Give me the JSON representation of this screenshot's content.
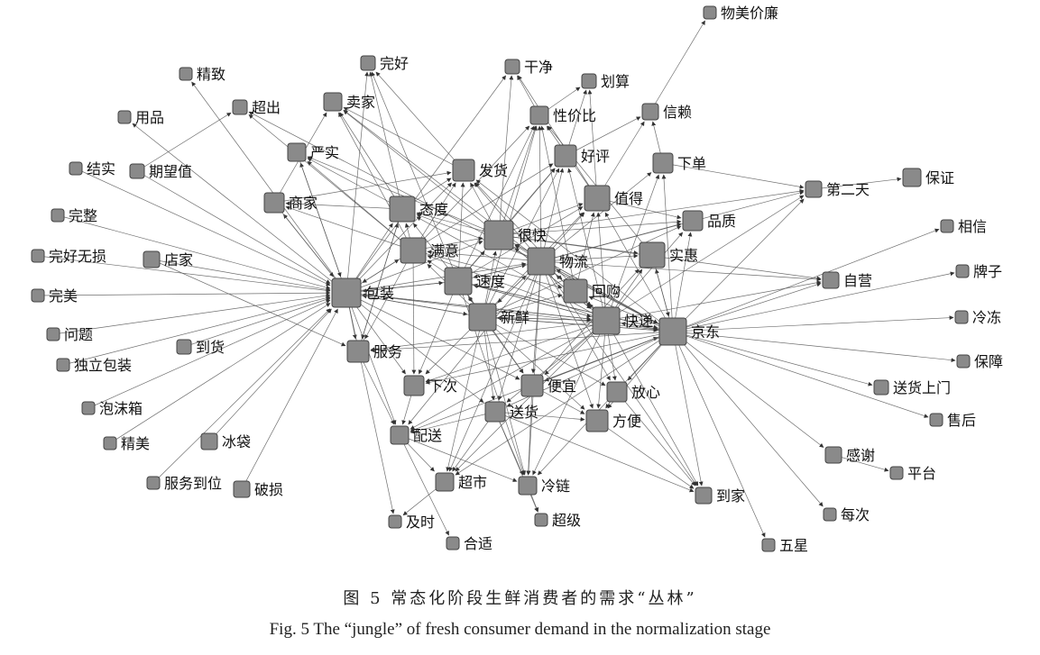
{
  "figure": {
    "caption_zh": "图 5   常态化阶段生鲜消费者的需求“丛林”",
    "caption_en": "Fig. 5    The “jungle” of fresh consumer demand in the normalization stage"
  },
  "colors": {
    "node_fill": "#8a8a8a",
    "node_stroke": "#444444",
    "edge": "#555555"
  },
  "nodes": [
    {
      "id": "wumeijialian",
      "label": "物美价廉",
      "size": 14
    },
    {
      "id": "jingzhi",
      "label": "精致",
      "size": 14
    },
    {
      "id": "wanhao",
      "label": "完好",
      "size": 16
    },
    {
      "id": "ganjing",
      "label": "干净",
      "size": 16
    },
    {
      "id": "huasuan",
      "label": "划算",
      "size": 16
    },
    {
      "id": "yongpin",
      "label": "用品",
      "size": 14
    },
    {
      "id": "chaochu",
      "label": "超出",
      "size": 16
    },
    {
      "id": "maijia",
      "label": "卖家",
      "size": 20
    },
    {
      "id": "xingjiabi",
      "label": "性价比",
      "size": 20
    },
    {
      "id": "xinlai",
      "label": "信赖",
      "size": 18
    },
    {
      "id": "yanshi",
      "label": "严实",
      "size": 20
    },
    {
      "id": "haoping",
      "label": "好评",
      "size": 24
    },
    {
      "id": "xiadan",
      "label": "下单",
      "size": 22
    },
    {
      "id": "jieshi",
      "label": "结实",
      "size": 14
    },
    {
      "id": "qiwangzhi",
      "label": "期望值",
      "size": 16
    },
    {
      "id": "fahuo",
      "label": "发货",
      "size": 24
    },
    {
      "id": "zhide",
      "label": "值得",
      "size": 28
    },
    {
      "id": "baozheng",
      "label": "保证",
      "size": 20
    },
    {
      "id": "diertian",
      "label": "第二天",
      "size": 18
    },
    {
      "id": "shangjia",
      "label": "商家",
      "size": 22
    },
    {
      "id": "taidu",
      "label": "态度",
      "size": 28
    },
    {
      "id": "wanzheng",
      "label": "完整",
      "size": 14
    },
    {
      "id": "henkuai",
      "label": "很快",
      "size": 32
    },
    {
      "id": "pinzhi",
      "label": "品质",
      "size": 22
    },
    {
      "id": "xiangxin",
      "label": "相信",
      "size": 14
    },
    {
      "id": "manyi",
      "label": "满意",
      "size": 28
    },
    {
      "id": "wuliu",
      "label": "物流",
      "size": 30
    },
    {
      "id": "shihui",
      "label": "实惠",
      "size": 28
    },
    {
      "id": "wanhaowusun",
      "label": "完好无损",
      "size": 14
    },
    {
      "id": "dianjia",
      "label": "店家",
      "size": 18
    },
    {
      "id": "paizi",
      "label": "牌子",
      "size": 14
    },
    {
      "id": "sudu",
      "label": "速度",
      "size": 30
    },
    {
      "id": "baozhuang",
      "label": "包装",
      "size": 32
    },
    {
      "id": "huigou",
      "label": "回购",
      "size": 26
    },
    {
      "id": "ziying",
      "label": "自营",
      "size": 18
    },
    {
      "id": "wanmei",
      "label": "完美",
      "size": 14
    },
    {
      "id": "xinxian",
      "label": "新鲜",
      "size": 30
    },
    {
      "id": "kuaidi",
      "label": "快递",
      "size": 30
    },
    {
      "id": "jingdong",
      "label": "京东",
      "size": 30
    },
    {
      "id": "lengdong",
      "label": "冷冻",
      "size": 14
    },
    {
      "id": "wenti",
      "label": "问题",
      "size": 14
    },
    {
      "id": "daohuo",
      "label": "到货",
      "size": 16
    },
    {
      "id": "fuwu",
      "label": "服务",
      "size": 24
    },
    {
      "id": "duli",
      "label": "独立包装",
      "size": 14
    },
    {
      "id": "baozhang",
      "label": "保障",
      "size": 14
    },
    {
      "id": "xiaci",
      "label": "下次",
      "size": 22
    },
    {
      "id": "pianyi",
      "label": "便宜",
      "size": 24
    },
    {
      "id": "fangxin",
      "label": "放心",
      "size": 22
    },
    {
      "id": "songhuoshangmen",
      "label": "送货上门",
      "size": 16
    },
    {
      "id": "paomoxiang",
      "label": "泡沫箱",
      "size": 14
    },
    {
      "id": "songhuo",
      "label": "送货",
      "size": 22
    },
    {
      "id": "fangbian",
      "label": "方便",
      "size": 24
    },
    {
      "id": "shouhou",
      "label": "售后",
      "size": 14
    },
    {
      "id": "peisong",
      "label": "配送",
      "size": 20
    },
    {
      "id": "jingmei",
      "label": "精美",
      "size": 14
    },
    {
      "id": "bingdai",
      "label": "冰袋",
      "size": 18
    },
    {
      "id": "ganxie",
      "label": "感谢",
      "size": 18
    },
    {
      "id": "pingtai",
      "label": "平台",
      "size": 14
    },
    {
      "id": "fuwudaowei",
      "label": "服务到位",
      "size": 14
    },
    {
      "id": "posun",
      "label": "破损",
      "size": 18
    },
    {
      "id": "chaoshi",
      "label": "超市",
      "size": 20
    },
    {
      "id": "lenglian",
      "label": "冷链",
      "size": 20
    },
    {
      "id": "daojia",
      "label": "到家",
      "size": 18
    },
    {
      "id": "meici",
      "label": "每次",
      "size": 14
    },
    {
      "id": "jishi",
      "label": "及时",
      "size": 14
    },
    {
      "id": "chaoji",
      "label": "超级",
      "size": 14
    },
    {
      "id": "heshi",
      "label": "合适",
      "size": 14
    },
    {
      "id": "wuxing",
      "label": "五星",
      "size": 14
    }
  ],
  "edges": [
    [
      "xinlai",
      "wumeijialian"
    ],
    [
      "haoping",
      "xinlai"
    ],
    [
      "zhide",
      "xinlai"
    ],
    [
      "xiadan",
      "xinlai"
    ],
    [
      "henkuai",
      "ganjing"
    ],
    [
      "zhide",
      "ganjing"
    ],
    [
      "xingjiabi",
      "ganjing"
    ],
    [
      "baozhuang",
      "ganjing"
    ],
    [
      "zhide",
      "huasuan"
    ],
    [
      "haoping",
      "huasuan"
    ],
    [
      "xingjiabi",
      "huasuan"
    ],
    [
      "baozhuang",
      "wanhao"
    ],
    [
      "taidu",
      "wanhao"
    ],
    [
      "fahuo",
      "wanhao"
    ],
    [
      "sudu",
      "wanhao"
    ],
    [
      "baozhuang",
      "jingzhi"
    ],
    [
      "baozhuang",
      "yongpin"
    ],
    [
      "qiwangzhi",
      "chaochu"
    ],
    [
      "jingdong",
      "chaochu"
    ],
    [
      "manyi",
      "chaochu"
    ],
    [
      "taidu",
      "maijia"
    ],
    [
      "fahuo",
      "maijia"
    ],
    [
      "henkuai",
      "maijia"
    ],
    [
      "manyi",
      "maijia"
    ],
    [
      "shangjia",
      "maijia"
    ],
    [
      "wuliu",
      "maijia"
    ],
    [
      "henkuai",
      "xingjiabi"
    ],
    [
      "manyi",
      "xingjiabi"
    ],
    [
      "sudu",
      "xingjiabi"
    ],
    [
      "wuliu",
      "xingjiabi"
    ],
    [
      "shihui",
      "xingjiabi"
    ],
    [
      "zhide",
      "xingjiabi"
    ],
    [
      "huigou",
      "xingjiabi"
    ],
    [
      "xinxian",
      "xingjiabi"
    ],
    [
      "baozhuang",
      "yanshi"
    ],
    [
      "henkuai",
      "yanshi"
    ],
    [
      "manyi",
      "yanshi"
    ],
    [
      "taidu",
      "yanshi"
    ],
    [
      "manyi",
      "haoping"
    ],
    [
      "wuliu",
      "haoping"
    ],
    [
      "sudu",
      "haoping"
    ],
    [
      "henkuai",
      "haoping"
    ],
    [
      "kuaidi",
      "haoping"
    ],
    [
      "xinxian",
      "haoping"
    ],
    [
      "jingdong",
      "xiadan"
    ],
    [
      "kuaidi",
      "xiadan"
    ],
    [
      "wuliu",
      "xiadan"
    ],
    [
      "xiadan",
      "diertian"
    ],
    [
      "henkuai",
      "fahuo"
    ],
    [
      "taidu",
      "fahuo"
    ],
    [
      "manyi",
      "fahuo"
    ],
    [
      "sudu",
      "fahuo"
    ],
    [
      "baozhuang",
      "fahuo"
    ],
    [
      "wuliu",
      "fahuo"
    ],
    [
      "kuaidi",
      "fahuo"
    ],
    [
      "shangjia",
      "fahuo"
    ],
    [
      "jingdong",
      "fahuo"
    ],
    [
      "wuliu",
      "zhide"
    ],
    [
      "henkuai",
      "zhide"
    ],
    [
      "sudu",
      "zhide"
    ],
    [
      "kuaidi",
      "zhide"
    ],
    [
      "jingdong",
      "zhide"
    ],
    [
      "xinxian",
      "zhide"
    ],
    [
      "huigou",
      "zhide"
    ],
    [
      "diertian",
      "baozheng"
    ],
    [
      "jingdong",
      "diertian"
    ],
    [
      "kuaidi",
      "diertian"
    ],
    [
      "wuliu",
      "diertian"
    ],
    [
      "henkuai",
      "diertian"
    ],
    [
      "baozhuang",
      "shangjia"
    ],
    [
      "taidu",
      "shangjia"
    ],
    [
      "manyi",
      "shangjia"
    ],
    [
      "baozhuang",
      "taidu"
    ],
    [
      "manyi",
      "taidu"
    ],
    [
      "sudu",
      "taidu"
    ],
    [
      "kuaidi",
      "taidu"
    ],
    [
      "wuliu",
      "taidu"
    ],
    [
      "henkuai",
      "taidu"
    ],
    [
      "fuwu",
      "taidu"
    ],
    [
      "baozhuang",
      "henkuai"
    ],
    [
      "manyi",
      "henkuai"
    ],
    [
      "sudu",
      "henkuai"
    ],
    [
      "kuaidi",
      "henkuai"
    ],
    [
      "wuliu",
      "henkuai"
    ],
    [
      "jingdong",
      "henkuai"
    ],
    [
      "xinxian",
      "henkuai"
    ],
    [
      "jingdong",
      "pinzhi"
    ],
    [
      "kuaidi",
      "pinzhi"
    ],
    [
      "wuliu",
      "pinzhi"
    ],
    [
      "henkuai",
      "pinzhi"
    ],
    [
      "xinxian",
      "pinzhi"
    ],
    [
      "zhide",
      "pinzhi"
    ],
    [
      "jingdong",
      "xiangxin"
    ],
    [
      "baozhuang",
      "manyi"
    ],
    [
      "sudu",
      "manyi"
    ],
    [
      "wuliu",
      "manyi"
    ],
    [
      "kuaidi",
      "manyi"
    ],
    [
      "xinxian",
      "manyi"
    ],
    [
      "sudu",
      "wuliu"
    ],
    [
      "kuaidi",
      "wuliu"
    ],
    [
      "jingdong",
      "wuliu"
    ],
    [
      "baozhuang",
      "wuliu"
    ],
    [
      "xinxian",
      "wuliu"
    ],
    [
      "jingdong",
      "shihui"
    ],
    [
      "kuaidi",
      "shihui"
    ],
    [
      "wuliu",
      "shihui"
    ],
    [
      "henkuai",
      "shihui"
    ],
    [
      "pianyi",
      "shihui"
    ],
    [
      "wanhaowusun",
      "baozhuang"
    ],
    [
      "dianjia",
      "baozhuang"
    ],
    [
      "wanmei",
      "baozhuang"
    ],
    [
      "wenti",
      "baozhuang"
    ],
    [
      "daohuo",
      "baozhuang"
    ],
    [
      "duli",
      "baozhuang"
    ],
    [
      "paomoxiang",
      "baozhuang"
    ],
    [
      "jingmei",
      "baozhuang"
    ],
    [
      "bingdai",
      "baozhuang"
    ],
    [
      "fuwudaowei",
      "baozhuang"
    ],
    [
      "posun",
      "baozhuang"
    ],
    [
      "jieshi",
      "baozhuang"
    ],
    [
      "wanzheng",
      "baozhuang"
    ],
    [
      "qiwangzhi",
      "baozhuang"
    ],
    [
      "shangjia",
      "baozhuang"
    ],
    [
      "yanshi",
      "baozhuang"
    ],
    [
      "jingdong",
      "baozhuang"
    ],
    [
      "kuaidi",
      "baozhuang"
    ],
    [
      "xinxian",
      "baozhuang"
    ],
    [
      "manyi",
      "baozhuang"
    ],
    [
      "sudu",
      "baozhuang"
    ],
    [
      "jingdong",
      "paizi"
    ],
    [
      "jingdong",
      "ziying"
    ],
    [
      "kuaidi",
      "ziying"
    ],
    [
      "wuliu",
      "ziying"
    ],
    [
      "henkuai",
      "ziying"
    ],
    [
      "baozhuang",
      "sudu"
    ],
    [
      "kuaidi",
      "sudu"
    ],
    [
      "wuliu",
      "sudu"
    ],
    [
      "jingdong",
      "sudu"
    ],
    [
      "xinxian",
      "sudu"
    ],
    [
      "jingdong",
      "huigou"
    ],
    [
      "kuaidi",
      "huigou"
    ],
    [
      "xinxian",
      "huigou"
    ],
    [
      "wuliu",
      "huigou"
    ],
    [
      "manyi",
      "huigou"
    ],
    [
      "baozhuang",
      "xinxian"
    ],
    [
      "kuaidi",
      "xinxian"
    ],
    [
      "jingdong",
      "xinxian"
    ],
    [
      "wuliu",
      "xinxian"
    ],
    [
      "sudu",
      "xinxian"
    ],
    [
      "jingdong",
      "kuaidi"
    ],
    [
      "wuliu",
      "kuaidi"
    ],
    [
      "sudu",
      "kuaidi"
    ],
    [
      "baozhuang",
      "kuaidi"
    ],
    [
      "xinxian",
      "kuaidi"
    ],
    [
      "huigou",
      "kuaidi"
    ],
    [
      "henkuai",
      "kuaidi"
    ],
    [
      "jingdong",
      "lengdong"
    ],
    [
      "jingdong",
      "baozhang"
    ],
    [
      "jingdong",
      "songhuoshangmen"
    ],
    [
      "jingdong",
      "shouhou"
    ],
    [
      "jingdong",
      "ganxie"
    ],
    [
      "ganxie",
      "pingtai"
    ],
    [
      "jingdong",
      "meici"
    ],
    [
      "jingdong",
      "wuxing"
    ],
    [
      "kuaidi",
      "jingdong"
    ],
    [
      "wuliu",
      "jingdong"
    ],
    [
      "henkuai",
      "jingdong"
    ],
    [
      "sudu",
      "jingdong"
    ],
    [
      "xinxian",
      "jingdong"
    ],
    [
      "pianyi",
      "jingdong"
    ],
    [
      "shihui",
      "jingdong"
    ],
    [
      "baozhuang",
      "fuwu"
    ],
    [
      "dianjia",
      "fuwu"
    ],
    [
      "jingdong",
      "fuwu"
    ],
    [
      "kuaidi",
      "fuwu"
    ],
    [
      "taidu",
      "fuwu"
    ],
    [
      "manyi",
      "fuwu"
    ],
    [
      "baozhuang",
      "xiaci"
    ],
    [
      "jingdong",
      "xiaci"
    ],
    [
      "kuaidi",
      "xiaci"
    ],
    [
      "sudu",
      "xiaci"
    ],
    [
      "xinxian",
      "xiaci"
    ],
    [
      "manyi",
      "xiaci"
    ],
    [
      "baozhuang",
      "pianyi"
    ],
    [
      "jingdong",
      "pianyi"
    ],
    [
      "xinxian",
      "pianyi"
    ],
    [
      "wuliu",
      "pianyi"
    ],
    [
      "sudu",
      "pianyi"
    ],
    [
      "kuaidi",
      "pianyi"
    ],
    [
      "jingdong",
      "fangxin"
    ],
    [
      "kuaidi",
      "fangxin"
    ],
    [
      "xinxian",
      "fangxin"
    ],
    [
      "wuliu",
      "fangxin"
    ],
    [
      "baozhuang",
      "songhuo"
    ],
    [
      "jingdong",
      "songhuo"
    ],
    [
      "kuaidi",
      "songhuo"
    ],
    [
      "xinxian",
      "songhuo"
    ],
    [
      "wuliu",
      "songhuo"
    ],
    [
      "jingdong",
      "fangbian"
    ],
    [
      "kuaidi",
      "fangbian"
    ],
    [
      "songhuo",
      "fangbian"
    ],
    [
      "pianyi",
      "fangbian"
    ],
    [
      "xinxian",
      "fangbian"
    ],
    [
      "wuliu",
      "fangbian"
    ],
    [
      "fangxin",
      "fangbian"
    ],
    [
      "baozhuang",
      "peisong"
    ],
    [
      "jingdong",
      "peisong"
    ],
    [
      "kuaidi",
      "peisong"
    ],
    [
      "fuwu",
      "peisong"
    ],
    [
      "xiaci",
      "peisong"
    ],
    [
      "wuliu",
      "peisong"
    ],
    [
      "songhuo",
      "peisong"
    ],
    [
      "jingdong",
      "chaoshi"
    ],
    [
      "peisong",
      "chaoshi"
    ],
    [
      "kuaidi",
      "chaoshi"
    ],
    [
      "xinxian",
      "chaoshi"
    ],
    [
      "songhuo",
      "chaoshi"
    ],
    [
      "wuliu",
      "chaoshi"
    ],
    [
      "jingdong",
      "lenglian"
    ],
    [
      "xinxian",
      "lenglian"
    ],
    [
      "kuaidi",
      "lenglian"
    ],
    [
      "wuliu",
      "lenglian"
    ],
    [
      "pianyi",
      "lenglian"
    ],
    [
      "songhuo",
      "lenglian"
    ],
    [
      "peisong",
      "lenglian"
    ],
    [
      "sudu",
      "lenglian"
    ],
    [
      "jingdong",
      "daojia"
    ],
    [
      "kuaidi",
      "daojia"
    ],
    [
      "songhuo",
      "daojia"
    ],
    [
      "fangbian",
      "daojia"
    ],
    [
      "wuliu",
      "daojia"
    ],
    [
      "fangxin",
      "daojia"
    ],
    [
      "baozhuang",
      "jishi"
    ],
    [
      "chaoshi",
      "jishi"
    ],
    [
      "peisong",
      "heshi"
    ],
    [
      "lenglian",
      "chaoji"
    ],
    [
      "songhuo",
      "chaoji"
    ]
  ]
}
